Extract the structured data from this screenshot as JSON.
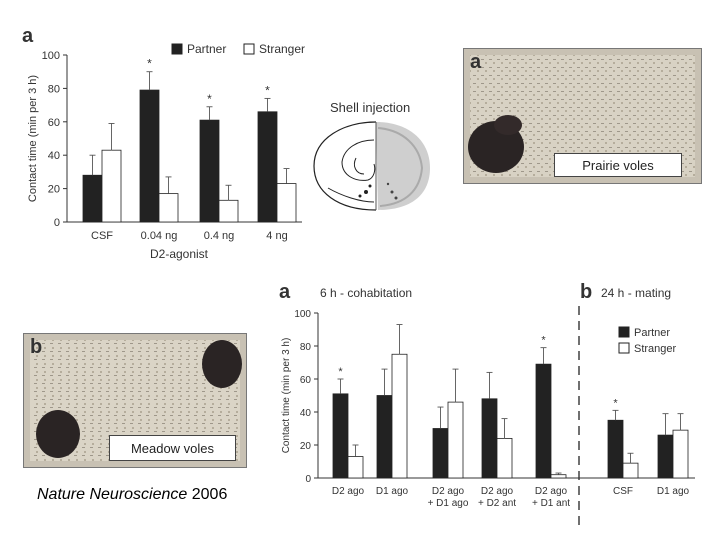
{
  "chart_data": [
    {
      "type": "bar",
      "panel_label": "a",
      "categories": [
        "CSF",
        "0.04 ng",
        "0.4 ng",
        "4 ng"
      ],
      "xlabel": "D2-agonist",
      "ylabel": "Contact time (min per 3 h)",
      "ylim": [
        0,
        100
      ],
      "yticks": [
        0,
        20,
        40,
        60,
        80,
        100
      ],
      "legend": "top-right",
      "series": [
        {
          "name": "Partner",
          "values": [
            28,
            79,
            61,
            66
          ],
          "errors": [
            12,
            11,
            8,
            8
          ],
          "color": "#222222"
        },
        {
          "name": "Stranger",
          "values": [
            43,
            17,
            13,
            23
          ],
          "errors": [
            16,
            10,
            9,
            9
          ],
          "color": "#ffffff"
        }
      ],
      "significance": [
        "",
        "*",
        "*",
        "*"
      ]
    },
    {
      "type": "bar",
      "panel_label": "a",
      "panel_title": "6 h - cohabitation",
      "panel_label_b": "b",
      "panel_title_b": "24 h - mating",
      "categories": [
        "D2 ago",
        "D1 ago",
        "D2 ago\n+ D1 ago",
        "D2 ago\n+ D2 ant",
        "D2 ago\n+ D1 ant",
        "CSF",
        "D1 ago"
      ],
      "ylabel": "Contact time (min per 3 h)",
      "ylim": [
        0,
        100
      ],
      "yticks": [
        0,
        20,
        40,
        60,
        80,
        100
      ],
      "legend": "top-right",
      "series": [
        {
          "name": "Partner",
          "values": [
            51,
            50,
            30,
            48,
            69,
            35,
            26
          ],
          "errors": [
            9,
            16,
            13,
            16,
            10,
            6,
            13
          ],
          "color": "#222222"
        },
        {
          "name": "Stranger",
          "values": [
            13,
            75,
            46,
            24,
            2,
            9,
            29
          ],
          "errors": [
            7,
            18,
            20,
            12,
            1,
            6,
            10
          ],
          "color": "#ffffff"
        }
      ],
      "significance": [
        "*",
        "",
        "",
        "",
        "*",
        "*",
        ""
      ]
    }
  ],
  "figure": {
    "shell_injection_label": "Shell injection",
    "prairie_label": "Prairie voles",
    "prairie_letter": "a",
    "meadow_label": "Meadow voles",
    "meadow_letter": "b",
    "citation_journal": "Nature Neuroscience",
    "citation_year": "2006"
  }
}
